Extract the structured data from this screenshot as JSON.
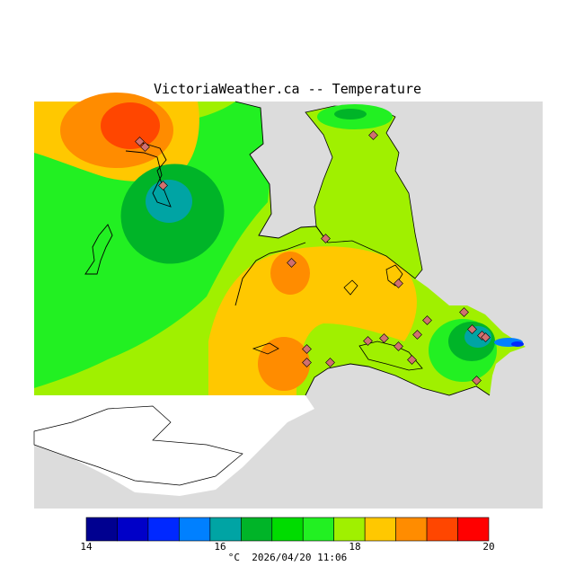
{
  "header": {
    "title": "VictoriaWeather.ca -- Temperature"
  },
  "legend": {
    "tick_labels": [
      "14",
      "16",
      "18",
      "20"
    ],
    "bins": [
      {
        "color": "#000090"
      },
      {
        "color": "#0000c8"
      },
      {
        "color": "#0028ff"
      },
      {
        "color": "#0080ff"
      },
      {
        "color": "#00a4a4"
      },
      {
        "color": "#00b428"
      },
      {
        "color": "#00dc00"
      },
      {
        "color": "#22f022"
      },
      {
        "color": "#a0f000"
      },
      {
        "color": "#ffc800"
      },
      {
        "color": "#ff8c00"
      },
      {
        "color": "#ff4600"
      },
      {
        "color": "#ff0000"
      }
    ]
  },
  "footer": {
    "unit": "°C",
    "timestamp": "2026/04/20 11:06"
  },
  "colors": {
    "land_outside": "#dcdcdc",
    "water": "#ffffff",
    "station": "#d07070"
  }
}
